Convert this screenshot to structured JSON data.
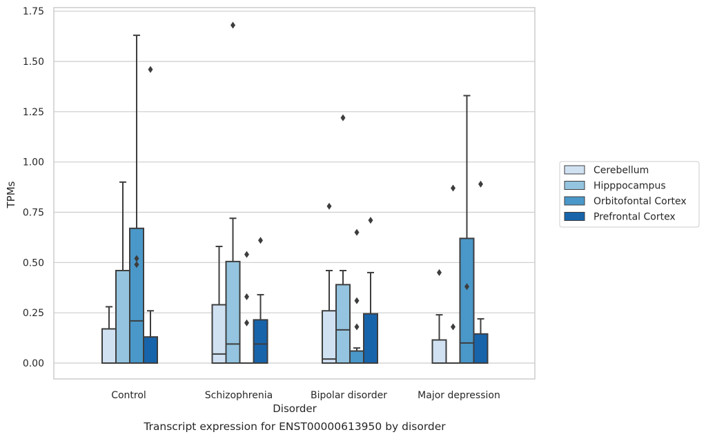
{
  "chart_data": {
    "type": "boxplot",
    "caption": "Transcript expression for ENST00000613950 by disorder",
    "xlabel": "Disorder",
    "ylabel": "TPMs",
    "ylim": [
      -0.08,
      1.76
    ],
    "yticks": [
      0.0,
      0.25,
      0.5,
      0.75,
      1.0,
      1.25,
      1.5,
      1.75
    ],
    "ytick_labels": [
      "0.00",
      "0.25",
      "0.50",
      "0.75",
      "1.00",
      "1.25",
      "1.50",
      "1.75"
    ],
    "grid": true,
    "legend_position": "right",
    "categories": [
      "Control",
      "Schizophrenia",
      "Bipolar disorder",
      "Major depression"
    ],
    "series": [
      {
        "name": "Cerebellum",
        "color": "#d0e1f2",
        "boxes": [
          {
            "q1": 0.0,
            "median": 0.0,
            "q3": 0.17,
            "whisker_low": 0.0,
            "whisker_high": 0.28,
            "outliers": []
          },
          {
            "q1": 0.0,
            "median": 0.045,
            "q3": 0.29,
            "whisker_low": 0.0,
            "whisker_high": 0.58,
            "outliers": []
          },
          {
            "q1": 0.0,
            "median": 0.02,
            "q3": 0.26,
            "whisker_low": 0.0,
            "whisker_high": 0.46,
            "outliers": [
              0.78
            ]
          },
          {
            "q1": 0.0,
            "median": 0.0,
            "q3": 0.115,
            "whisker_low": 0.0,
            "whisker_high": 0.24,
            "outliers": [
              0.45
            ]
          }
        ]
      },
      {
        "name": "Hipppocampus",
        "color": "#94c4df",
        "boxes": [
          {
            "q1": 0.0,
            "median": 0.0,
            "q3": 0.46,
            "whisker_low": 0.0,
            "whisker_high": 0.9,
            "outliers": []
          },
          {
            "q1": 0.0,
            "median": 0.095,
            "q3": 0.505,
            "whisker_low": 0.0,
            "whisker_high": 0.72,
            "outliers": [
              1.68
            ]
          },
          {
            "q1": 0.0,
            "median": 0.165,
            "q3": 0.39,
            "whisker_low": 0.0,
            "whisker_high": 0.46,
            "outliers": [
              1.22
            ]
          },
          {
            "q1": 0.0,
            "median": 0.0,
            "q3": 0.0,
            "whisker_low": 0.0,
            "whisker_high": 0.0,
            "outliers": [
              0.18,
              0.87
            ]
          }
        ]
      },
      {
        "name": "Orbitofontal Cortex",
        "color": "#4a98c9",
        "boxes": [
          {
            "q1": 0.0,
            "median": 0.21,
            "q3": 0.67,
            "whisker_low": 0.0,
            "whisker_high": 1.63,
            "outliers": [
              0.49,
              0.52
            ]
          },
          {
            "q1": 0.0,
            "median": 0.0,
            "q3": 0.0,
            "whisker_low": 0.0,
            "whisker_high": 0.0,
            "outliers": [
              0.2,
              0.33,
              0.54
            ]
          },
          {
            "q1": 0.0,
            "median": 0.0,
            "q3": 0.06,
            "whisker_low": 0.0,
            "whisker_high": 0.075,
            "outliers": [
              0.18,
              0.31,
              0.65
            ]
          },
          {
            "q1": 0.0,
            "median": 0.1,
            "q3": 0.62,
            "whisker_low": 0.0,
            "whisker_high": 1.33,
            "outliers": [
              0.38
            ]
          }
        ]
      },
      {
        "name": "Prefrontal Cortex",
        "color": "#1764ab",
        "boxes": [
          {
            "q1": 0.0,
            "median": 0.0,
            "q3": 0.13,
            "whisker_low": 0.0,
            "whisker_high": 0.26,
            "outliers": [
              1.46
            ]
          },
          {
            "q1": 0.0,
            "median": 0.095,
            "q3": 0.215,
            "whisker_low": 0.0,
            "whisker_high": 0.34,
            "outliers": [
              0.61
            ]
          },
          {
            "q1": 0.0,
            "median": 0.0,
            "q3": 0.245,
            "whisker_low": 0.0,
            "whisker_high": 0.45,
            "outliers": [
              0.71
            ]
          },
          {
            "q1": 0.0,
            "median": 0.0,
            "q3": 0.145,
            "whisker_low": 0.0,
            "whisker_high": 0.22,
            "outliers": [
              0.89
            ]
          }
        ]
      }
    ]
  }
}
